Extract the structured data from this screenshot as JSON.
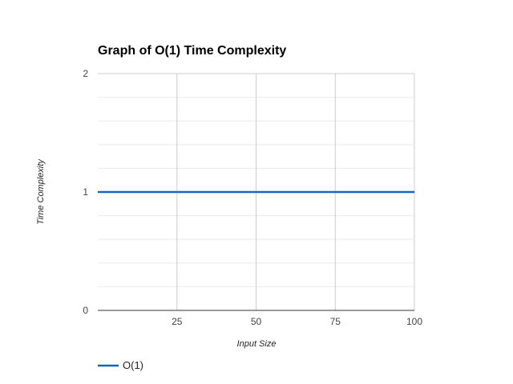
{
  "chart_data": {
    "type": "line",
    "title": "Graph of O(1) Time Complexity",
    "xlabel": "Input Size",
    "ylabel": "Time Complexity",
    "xlim": [
      0,
      100
    ],
    "ylim": [
      0,
      2
    ],
    "x_ticks": [
      25,
      50,
      75,
      100
    ],
    "y_ticks": [
      0,
      1,
      2
    ],
    "y_minor_ticks": [
      0.2,
      0.4,
      0.6,
      0.8,
      1.2,
      1.4,
      1.6,
      1.8
    ],
    "grid": true,
    "legend_position": "bottom-left",
    "series": [
      {
        "name": "O(1)",
        "color": "#1565c0",
        "x": [
          0,
          100
        ],
        "y": [
          1,
          1
        ]
      }
    ]
  }
}
